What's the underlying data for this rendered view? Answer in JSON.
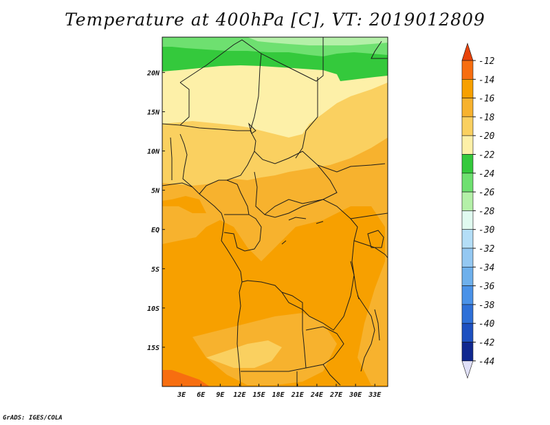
{
  "title": "Temperature at 400hPa [C], VT: 2019012809",
  "credit": "GrADS: IGES/COLA",
  "map": {
    "x_ticks": [
      {
        "lon": 3,
        "label": "3E"
      },
      {
        "lon": 6,
        "label": "6E"
      },
      {
        "lon": 9,
        "label": "9E"
      },
      {
        "lon": 12,
        "label": "12E"
      },
      {
        "lon": 15,
        "label": "15E"
      },
      {
        "lon": 18,
        "label": "18E"
      },
      {
        "lon": 21,
        "label": "21E"
      },
      {
        "lon": 24,
        "label": "24E"
      },
      {
        "lon": 27,
        "label": "27E"
      },
      {
        "lon": 30,
        "label": "30E"
      },
      {
        "lon": 33,
        "label": "33E"
      }
    ],
    "y_ticks": [
      {
        "lat": 20,
        "label": "20N"
      },
      {
        "lat": 15,
        "label": "15N"
      },
      {
        "lat": 10,
        "label": "10N"
      },
      {
        "lat": 5,
        "label": "5N"
      },
      {
        "lat": 0,
        "label": "EQ"
      },
      {
        "lat": -5,
        "label": "5S"
      },
      {
        "lat": -10,
        "label": "10S"
      },
      {
        "lat": -15,
        "label": "15S"
      }
    ],
    "lon_range": [
      0,
      35
    ],
    "lat_range": [
      -20,
      24.5
    ]
  },
  "colorbar": {
    "labels": [
      "-12",
      "-14",
      "-16",
      "-18",
      "-20",
      "-22",
      "-24",
      "-26",
      "-28",
      "-30",
      "-32",
      "-34",
      "-36",
      "-38",
      "-40",
      "-42",
      "-44"
    ],
    "top_color": "#e8430a",
    "bottom_color": "#e0e0f8",
    "colors": [
      "#f76e10",
      "#f7a000",
      "#f7b22e",
      "#fad060",
      "#fdf0a8",
      "#34c93c",
      "#6ee070",
      "#b4f0a8",
      "#e0faf0",
      "#b4def7",
      "#94c8f2",
      "#6eb0ec",
      "#4a92e8",
      "#2e70d8",
      "#1d50c0",
      "#102890"
    ]
  },
  "palette": {
    "orange_dark": "#f76e10",
    "orange": "#f7a000",
    "orange_light": "#f7b22e",
    "yellow_orange": "#fad060",
    "pale_yellow": "#fdf0a8",
    "green": "#34c93c",
    "mid_green": "#6ee070",
    "light_green": "#b4f0a8"
  }
}
